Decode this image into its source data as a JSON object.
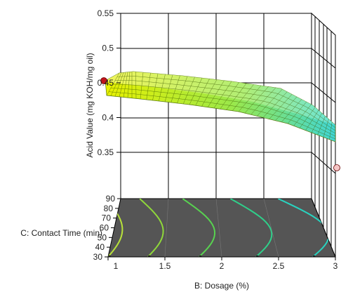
{
  "chart_data": {
    "type": "surface",
    "zlabel": "Acid Value (mg KOH/mg oil)",
    "xlabel": "B: Dosage (%)",
    "ylabel": "C: Contact Time (min)",
    "zlim": [
      0.35,
      0.55
    ],
    "z_ticks": [
      "0.55",
      "0.5",
      "0.45",
      "0.4",
      "0.35"
    ],
    "x_ticks": [
      "1",
      "1.5",
      "2",
      "2.5",
      "3"
    ],
    "y_ticks": [
      "30",
      "40",
      "50",
      "60",
      "70",
      "80",
      "90"
    ],
    "x_range": [
      1,
      3
    ],
    "y_range": [
      30,
      90
    ],
    "grid": true,
    "surface_corners": [
      {
        "dosage": 1,
        "time": 90,
        "acid_value": 0.46
      },
      {
        "dosage": 1,
        "time": 30,
        "acid_value": 0.45
      },
      {
        "dosage": 3,
        "time": 90,
        "acid_value": 0.43
      },
      {
        "dosage": 3,
        "time": 30,
        "acid_value": 0.37
      }
    ],
    "design_points": [
      {
        "dosage": 1,
        "time": 30,
        "acid_value": 0.45,
        "color": "#c0141c"
      },
      {
        "dosage": 3,
        "time": 30,
        "acid_value": 0.33,
        "color": "#f4c6c6"
      }
    ],
    "contour_colors": [
      "#b8e23a",
      "#8fd83a",
      "#58d250",
      "#2fcf8a",
      "#28d4c0"
    ],
    "colors": {
      "low": "#3fd6d6",
      "high": "#e8f000",
      "floor": "#555555"
    }
  }
}
